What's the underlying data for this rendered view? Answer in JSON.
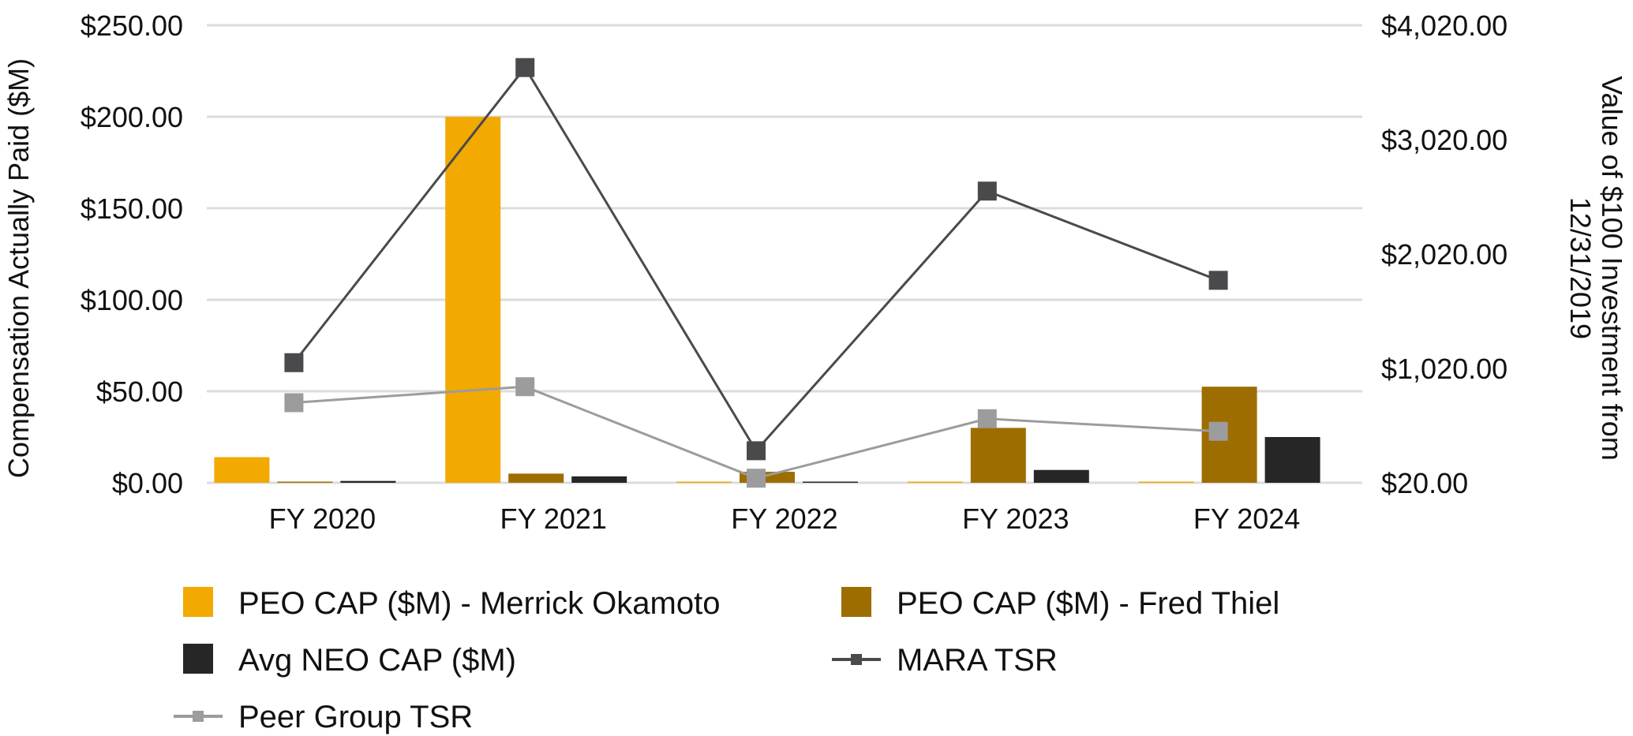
{
  "chart_data": {
    "type": "bar",
    "categories": [
      "FY 2020",
      "FY 2021",
      "FY 2022",
      "FY 2023",
      "FY 2024"
    ],
    "left_axis": {
      "label": "Compensation Actually Paid ($M)",
      "range": [
        0,
        250
      ],
      "ticks": [
        0,
        50,
        100,
        150,
        200,
        250
      ],
      "tick_labels": [
        "$0.00",
        "$50.00",
        "$100.00",
        "$150.00",
        "$200.00",
        "$250.00"
      ]
    },
    "right_axis": {
      "label_line1": "Value of $100 Investment from",
      "label_line2": "12/31/2019",
      "range": [
        20,
        4020
      ],
      "ticks": [
        20,
        1020,
        2020,
        3020,
        4020
      ],
      "tick_labels": [
        "$20.00",
        "$1,020.00",
        "$2,020.00",
        "$3,020.00",
        "$4,020.00"
      ]
    },
    "bar_series": [
      {
        "name": "PEO CAP ($M) - Merrick Okamoto",
        "color": "#F2A900",
        "values": [
          14,
          200,
          0,
          0,
          0
        ]
      },
      {
        "name": "PEO CAP ($M) - Fred Thiel",
        "color": "#9E6D00",
        "values": [
          0,
          5,
          6,
          30,
          52.5
        ]
      },
      {
        "name": "Avg NEO CAP ($M)",
        "color": "#262626",
        "values": [
          1,
          3.5,
          0.5,
          7,
          25
        ]
      }
    ],
    "line_series": [
      {
        "name": "MARA TSR",
        "color": "#4A4A4D",
        "values": [
          1070,
          3650,
          300,
          2570,
          1790
        ]
      },
      {
        "name": "Peer Group TSR",
        "color": "#9C9C9C",
        "values": [
          720,
          860,
          60,
          580,
          470
        ]
      }
    ],
    "legend": [
      {
        "label": "PEO CAP ($M) - Merrick Okamoto",
        "kind": "box",
        "color": "#F2A900"
      },
      {
        "label": "PEO CAP ($M) - Fred Thiel",
        "kind": "box",
        "color": "#9E6D00"
      },
      {
        "label": "Avg NEO CAP ($M)",
        "kind": "box",
        "color": "#262626"
      },
      {
        "label": "MARA TSR",
        "kind": "line",
        "color": "#4A4A4D"
      },
      {
        "label": "Peer Group TSR",
        "kind": "line",
        "color": "#9C9C9C"
      }
    ]
  }
}
